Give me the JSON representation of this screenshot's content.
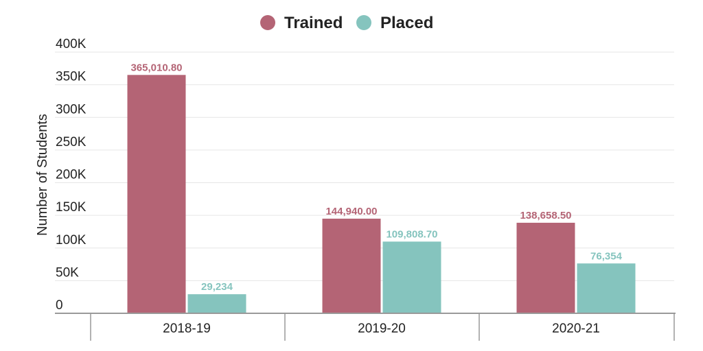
{
  "chart_data": {
    "type": "bar",
    "categories": [
      "2018-19",
      "2019-20",
      "2020-21"
    ],
    "series": [
      {
        "name": "Trained",
        "color": "#b46475",
        "values": [
          365010.8,
          144940.0,
          138658.5
        ],
        "labels": [
          "365,010.80",
          "144,940.00",
          "138,658.50"
        ]
      },
      {
        "name": "Placed",
        "color": "#85c4be",
        "values": [
          29234,
          109808.7,
          76354
        ],
        "labels": [
          "29,234",
          "109,808.70",
          "76,354"
        ]
      }
    ],
    "ylabel": "Number of Students",
    "ylim": [
      0,
      400000
    ],
    "yticks": [
      {
        "value": 0,
        "label": "0"
      },
      {
        "value": 50000,
        "label": "50K"
      },
      {
        "value": 100000,
        "label": "100K"
      },
      {
        "value": 150000,
        "label": "150K"
      },
      {
        "value": 200000,
        "label": "200K"
      },
      {
        "value": 250000,
        "label": "250K"
      },
      {
        "value": 300000,
        "label": "300K"
      },
      {
        "value": 350000,
        "label": "350K"
      },
      {
        "value": 400000,
        "label": "400K"
      }
    ],
    "legend": "top-center",
    "grid": true
  }
}
